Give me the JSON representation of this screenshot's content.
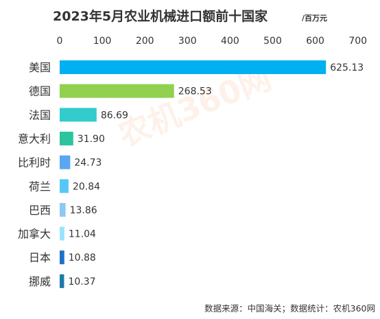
{
  "chart_data": {
    "type": "bar",
    "orientation": "horizontal",
    "title": "2023年5月农业机械进口额前十国家",
    "unit": "/百万元",
    "categories": [
      "美国",
      "德国",
      "法国",
      "意大利",
      "比利时",
      "荷兰",
      "巴西",
      "加拿大",
      "日本",
      "挪威"
    ],
    "values": [
      625.13,
      268.53,
      86.69,
      31.9,
      24.73,
      20.84,
      13.86,
      11.04,
      10.88,
      10.37
    ],
    "value_labels": [
      "625.13",
      "268.53",
      "86.69",
      "31.90",
      "24.73",
      "20.84",
      "13.86",
      "11.04",
      "10.88",
      "10.37"
    ],
    "colors": [
      "#00b0f0",
      "#92d050",
      "#33cccc",
      "#2bc49c",
      "#5aa6f0",
      "#57c8f6",
      "#8ec8f5",
      "#99e3fb",
      "#1f6fc9",
      "#1e7aa8"
    ],
    "xlim": [
      0,
      700
    ],
    "x_ticks": [
      "0",
      "100",
      "200",
      "300",
      "400",
      "500",
      "600",
      "700"
    ],
    "x_axis_position": "top",
    "grid": false,
    "source": "数据来源：中国海关；数据统计：农机360网",
    "watermark": "农机360网"
  }
}
